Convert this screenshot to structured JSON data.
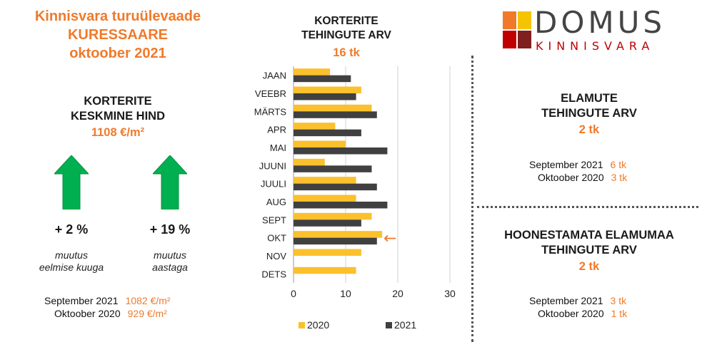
{
  "header": {
    "line1": "Kinnisvara turuülevaade",
    "line2": "KURESSAARE",
    "line3": "oktoober 2021"
  },
  "price": {
    "title_line1": "KORTERITE",
    "title_line2": "KESKMINE HIND",
    "value": "1108 €/m²",
    "monthly_change": "+ 2 %",
    "monthly_caption_line1": "muutus",
    "monthly_caption_line2": "eelmise kuuga",
    "yearly_change": "+ 19 %",
    "yearly_caption_line1": "muutus",
    "yearly_caption_line2": "aastaga",
    "comparisons": [
      {
        "label": "September  2021",
        "value": "1082 €/m²"
      },
      {
        "label": "Oktoober  2020",
        "value": "929 €/m²"
      }
    ],
    "arrow_color": "#00b050"
  },
  "apartments": {
    "title_line1": "KORTERITE",
    "title_line2": "TEHINGUTE ARV",
    "value": "16 tk"
  },
  "houses": {
    "title_line1": "ELAMUTE",
    "title_line2": "TEHINGUTE ARV",
    "value": "2 tk",
    "comparisons": [
      {
        "label": "September  2021",
        "value": "6 tk"
      },
      {
        "label": "Oktoober  2020",
        "value": "3 tk"
      }
    ]
  },
  "land": {
    "title_line1": "HOONESTAMATA ELAMUMAA",
    "title_line2": "TEHINGUTE ARV",
    "value": "2 tk",
    "comparisons": [
      {
        "label": "September  2021",
        "value": "3 tk"
      },
      {
        "label": "Oktoober  2020",
        "value": "1 tk"
      }
    ]
  },
  "logo": {
    "name": "DOMUS",
    "subtitle": "KINNISVARA",
    "colors": [
      "#f07a2a",
      "#f5c400",
      "#c00000",
      "#7f1f1f"
    ]
  },
  "chart_data": {
    "type": "bar",
    "orientation": "horizontal",
    "categories": [
      "JAAN",
      "VEEBR",
      "MÄRTS",
      "APR",
      "MAI",
      "JUUNI",
      "JUULI",
      "AUG",
      "SEPT",
      "OKT",
      "NOV",
      "DETS"
    ],
    "series": [
      {
        "name": "2020",
        "color": "#fbc02d",
        "values": [
          7,
          13,
          15,
          8,
          10,
          6,
          12,
          12,
          15,
          17,
          13,
          12
        ]
      },
      {
        "name": "2021",
        "color": "#404040",
        "values": [
          11,
          12,
          16,
          13,
          18,
          15,
          16,
          18,
          13,
          16,
          null,
          null
        ]
      }
    ],
    "xlim": [
      0,
      30
    ],
    "xticks": [
      "0",
      "10",
      "20",
      "30"
    ],
    "grid": true,
    "legend": "bottom",
    "annotation": {
      "category": "OKT",
      "symbol": "←",
      "color": "#f07a2a"
    }
  }
}
